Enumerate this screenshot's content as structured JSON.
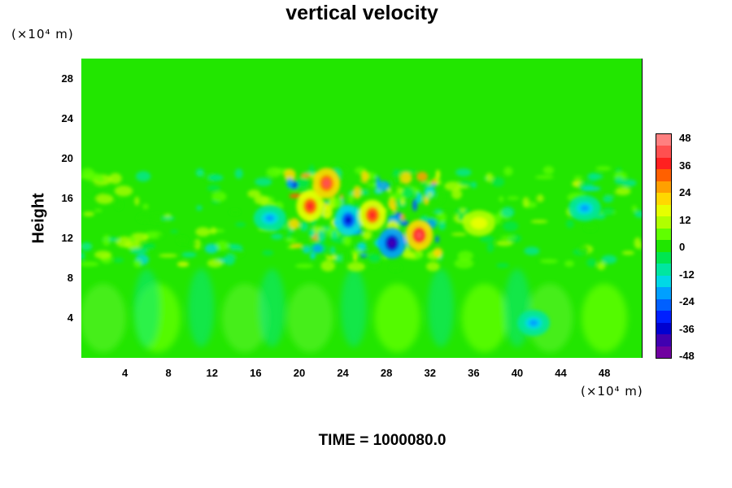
{
  "chart_data": {
    "type": "heatmap",
    "title": "vertical velocity",
    "xlabel": "",
    "ylabel": "Height",
    "x_unit": "(×10⁴ m)",
    "y_unit": "(×10⁴ m)",
    "xlim": [
      0,
      51.5
    ],
    "ylim": [
      0,
      30
    ],
    "x_ticks": [
      4,
      8,
      12,
      16,
      20,
      24,
      28,
      32,
      36,
      40,
      44,
      48
    ],
    "y_ticks": [
      4,
      8,
      12,
      16,
      20,
      24,
      28
    ],
    "colorbar": {
      "range": [
        -48,
        48
      ],
      "tick_labels": [
        48,
        36,
        24,
        12,
        0,
        -12,
        -24,
        -36,
        -48
      ],
      "colors": [
        "#ff8080",
        "#ff5050",
        "#ff2020",
        "#ff6000",
        "#ffa000",
        "#ffd800",
        "#e6ff00",
        "#b0ff00",
        "#60ff00",
        "#20e600",
        "#00e650",
        "#00e6a0",
        "#00d8e6",
        "#00a0ff",
        "#0060ff",
        "#0020ff",
        "#0000d0",
        "#4000b0",
        "#7000a0"
      ]
    },
    "features": [
      {
        "x": 21,
        "y": 15.2,
        "value": 40
      },
      {
        "x": 22.5,
        "y": 17.5,
        "value": 42
      },
      {
        "x": 24.5,
        "y": 13.8,
        "value": -36
      },
      {
        "x": 26.7,
        "y": 14.3,
        "value": 40
      },
      {
        "x": 28.5,
        "y": 11.5,
        "value": -44
      },
      {
        "x": 31,
        "y": 12.3,
        "value": 44
      },
      {
        "x": 17.3,
        "y": 14,
        "value": -22
      },
      {
        "x": 41.5,
        "y": 3.5,
        "value": -22
      },
      {
        "x": 46.2,
        "y": 15,
        "value": -20
      },
      {
        "x": 36.5,
        "y": 13.5,
        "value": 18
      }
    ],
    "annotation": "TIME = 1000080.0"
  }
}
